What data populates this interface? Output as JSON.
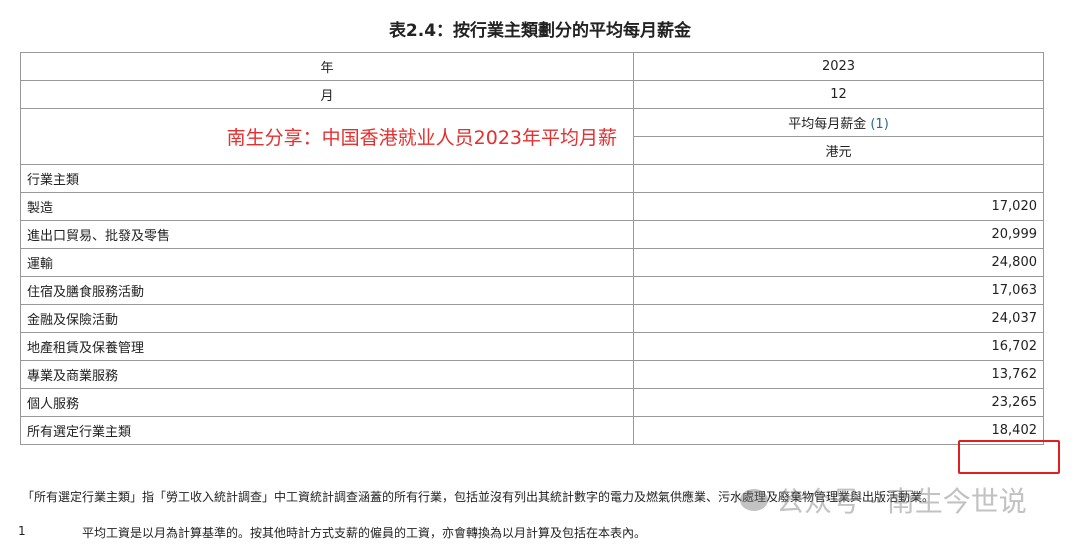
{
  "title": "表2.4：按行業主類劃分的平均每月薪金",
  "header": {
    "year_label": "年",
    "year": "2023",
    "month_label": "月",
    "month": "12",
    "overlay": "南生分享：中国香港就业人员2023年平均月薪",
    "measure": "平均每月薪金",
    "measure_ref": "(1)",
    "unit": "港元",
    "category_label": "行業主類"
  },
  "rows": [
    {
      "name": "製造",
      "value": "17,020"
    },
    {
      "name": "進出口貿易、批發及零售",
      "value": "20,999"
    },
    {
      "name": "運輸",
      "value": "24,800"
    },
    {
      "name": "住宿及膳食服務活動",
      "value": "17,063"
    },
    {
      "name": "金融及保險活動",
      "value": "24,037"
    },
    {
      "name": "地產租賃及保養管理",
      "value": "16,702"
    },
    {
      "name": "專業及商業服務",
      "value": "13,762"
    },
    {
      "name": "個人服務",
      "value": "23,265"
    },
    {
      "name": "所有選定行業主類",
      "value": "18,402"
    }
  ],
  "note": "「所有選定行業主類」指「勞工收入統計調查」中工資統計調查涵蓋的所有行業，包括並沒有列出其統計數字的電力及燃氣供應業、污水處理及廢棄物管理業與出版活動業。",
  "footnote": {
    "num": "1",
    "text": "平均工資是以月為計算基準的。按其他時計方式支薪的僱員的工資，亦會轉換為以月計算及包括在本表內。"
  },
  "watermark": "公众号 · 南生今世说",
  "highlight_color": "#e02020"
}
